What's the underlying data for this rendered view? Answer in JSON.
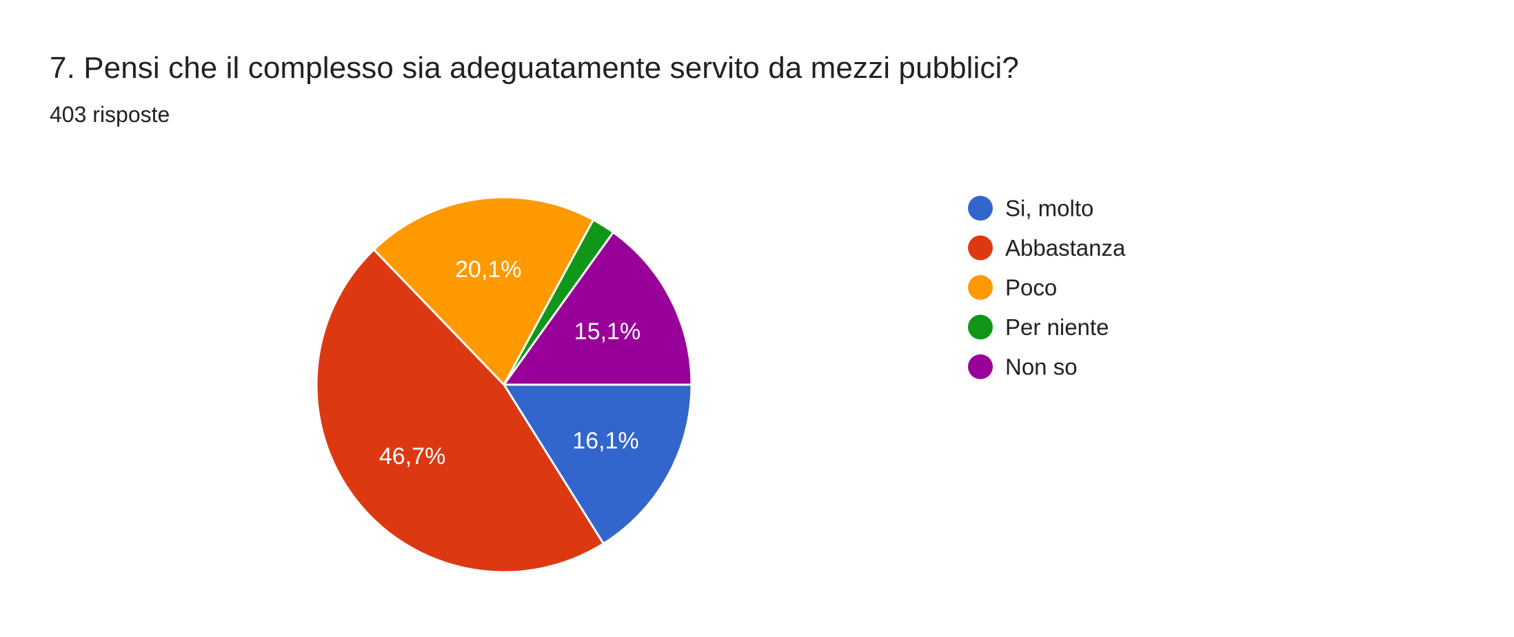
{
  "header": {
    "title": "7. Pensi che il complesso sia adeguatamente servito da mezzi pubblici?",
    "subtitle": "403 risposte"
  },
  "chart_data": {
    "type": "pie",
    "title": "7. Pensi che il complesso sia adeguatamente servito da mezzi pubblici?",
    "subtitle": "403 risposte",
    "legend_position": "right",
    "slices": [
      {
        "name": "Si, molto",
        "value": 16.1,
        "label": "16,1%",
        "color": "#3366cc"
      },
      {
        "name": "Abbastanza",
        "value": 46.7,
        "label": "46,7%",
        "color": "#dc3912"
      },
      {
        "name": "Poco",
        "value": 20.1,
        "label": "20,1%",
        "color": "#ff9900"
      },
      {
        "name": "Per niente",
        "value": 2.0,
        "label": "",
        "color": "#109618"
      },
      {
        "name": "Non so",
        "value": 15.1,
        "label": "15,1%",
        "color": "#990099"
      }
    ]
  }
}
